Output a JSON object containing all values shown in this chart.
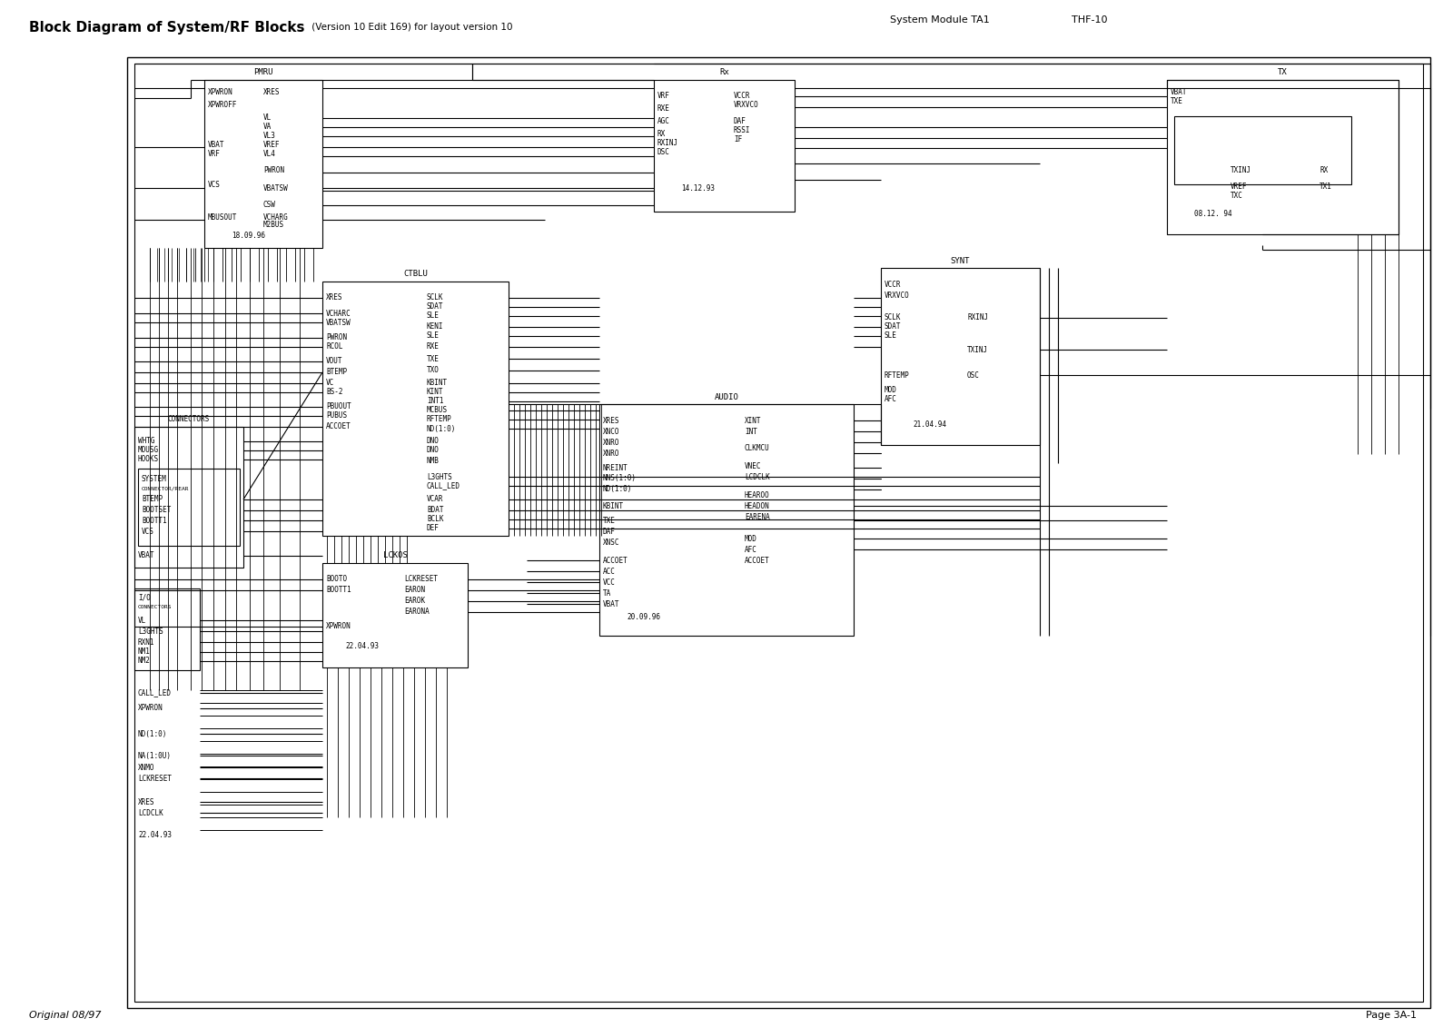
{
  "title_bold": "Block Diagram of System/RF Blocks",
  "title_normal": " (Version 10 Edit 169) for layout version 10",
  "header_right1": "System Module TA1",
  "header_right2": "THF-10",
  "footer_left": "Original 08/97",
  "footer_right": "Page 3A-1",
  "bg_color": "#ffffff",
  "line_color": "#000000",
  "text_color": "#000000"
}
